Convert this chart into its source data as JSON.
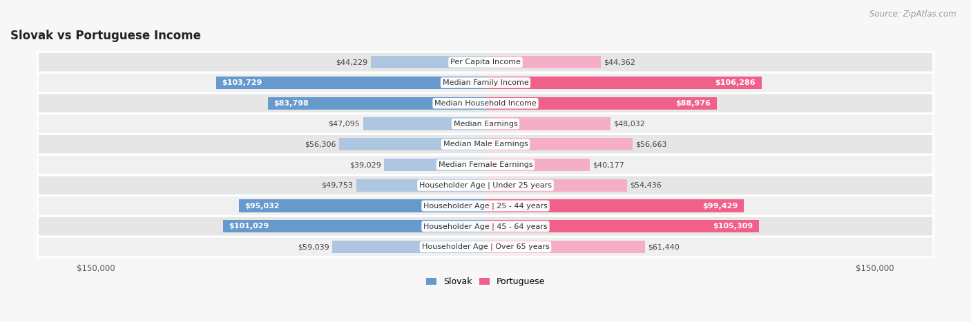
{
  "title": "Slovak vs Portuguese Income",
  "source": "Source: ZipAtlas.com",
  "categories": [
    "Per Capita Income",
    "Median Family Income",
    "Median Household Income",
    "Median Earnings",
    "Median Male Earnings",
    "Median Female Earnings",
    "Householder Age | Under 25 years",
    "Householder Age | 25 - 44 years",
    "Householder Age | 45 - 64 years",
    "Householder Age | Over 65 years"
  ],
  "slovak_values": [
    44229,
    103729,
    83798,
    47095,
    56306,
    39029,
    49753,
    95032,
    101029,
    59039
  ],
  "portuguese_values": [
    44362,
    106286,
    88976,
    48032,
    56663,
    40177,
    54436,
    99429,
    105309,
    61440
  ],
  "slovak_labels": [
    "$44,229",
    "$103,729",
    "$83,798",
    "$47,095",
    "$56,306",
    "$39,029",
    "$49,753",
    "$95,032",
    "$101,029",
    "$59,039"
  ],
  "portuguese_labels": [
    "$44,362",
    "$106,286",
    "$88,976",
    "$48,032",
    "$56,663",
    "$40,177",
    "$54,436",
    "$99,429",
    "$105,309",
    "$61,440"
  ],
  "slovak_color_light": "#aec6e0",
  "slovak_color_dark": "#6699cc",
  "portuguese_color_light": "#f5aec8",
  "portuguese_color_dark": "#f0608a",
  "max_value": 150000,
  "background_color": "#f7f7f7",
  "row_even_color": "#e6e6e6",
  "row_odd_color": "#f0f0f0",
  "label_color_inside": "#ffffff",
  "label_color_outside": "#444444",
  "title_fontsize": 12,
  "source_fontsize": 8.5,
  "bar_label_fontsize": 8,
  "category_fontsize": 8,
  "axis_label_fontsize": 8.5,
  "legend_fontsize": 9,
  "inside_threshold": 0.55
}
